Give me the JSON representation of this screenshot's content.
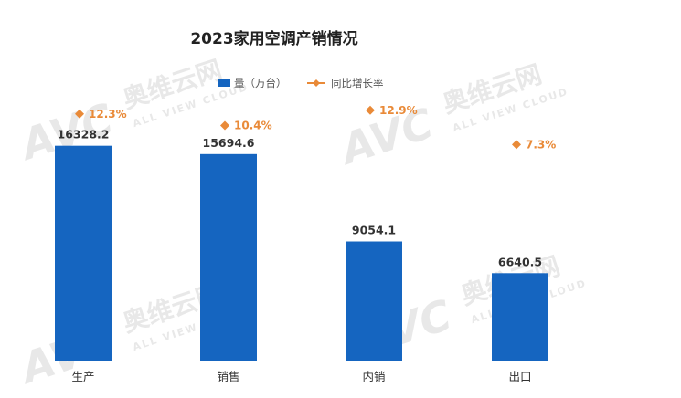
{
  "chart_data": {
    "type": "bar",
    "title": "2023家用空调产销情况",
    "categories": [
      "生产",
      "销售",
      "内销",
      "出口"
    ],
    "series": [
      {
        "name": "量（万台）",
        "kind": "bar",
        "color": "#1565c0",
        "values": [
          16328.2,
          15694.6,
          9054.1,
          6640.5
        ],
        "labels": [
          "16328.2",
          "15694.6",
          "9054.1",
          "6640.5"
        ]
      },
      {
        "name": "同比增长率",
        "kind": "marker",
        "color": "#e98a38",
        "values": [
          12.3,
          10.4,
          12.9,
          7.3
        ],
        "labels": [
          "12.3%",
          "10.4%",
          "12.9%",
          "7.3%"
        ]
      }
    ],
    "ylim": [
      0,
      17000
    ],
    "y2lim": [
      -28,
      16
    ],
    "legend_position": "top-center",
    "grid": false,
    "watermark": {
      "brand": "AVC",
      "chinese": "奥维云网",
      "english": "ALL VIEW CLOUD"
    }
  }
}
